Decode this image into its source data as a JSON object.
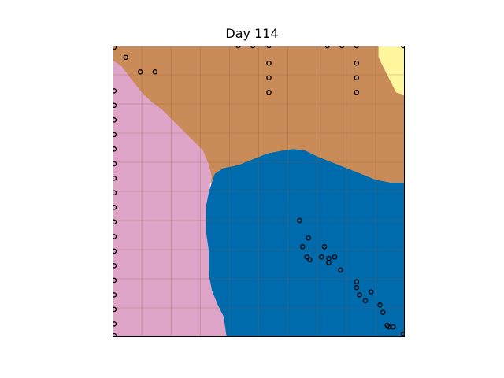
{
  "title": "Day 114",
  "colors": {
    "brown": "#c98b58",
    "pink": "#dea5c8",
    "blue": "#006bac",
    "yellow": "#fff59c",
    "grid": "#8a5a3a",
    "marker_edge": "#000000"
  },
  "grid": true,
  "legend": "none",
  "regions": [
    {
      "name": "brown",
      "color_key": "brown"
    },
    {
      "name": "pink",
      "color_key": "pink"
    },
    {
      "name": "blue",
      "color_key": "blue"
    },
    {
      "name": "yellow",
      "color_key": "yellow"
    }
  ],
  "markers": [
    [
      0.5,
      99.5
    ],
    [
      0.5,
      84.5
    ],
    [
      0.5,
      79.5
    ],
    [
      0.5,
      74.5
    ],
    [
      0.5,
      69.5
    ],
    [
      0.5,
      64.5
    ],
    [
      0.5,
      59.5
    ],
    [
      0.5,
      54.5
    ],
    [
      0.5,
      49.5
    ],
    [
      0.5,
      44.5
    ],
    [
      0.5,
      39.5
    ],
    [
      0.5,
      34.5
    ],
    [
      0.5,
      29.5
    ],
    [
      0.5,
      24.5
    ],
    [
      0.5,
      19.5
    ],
    [
      0.5,
      14.5
    ],
    [
      0.5,
      9.5
    ],
    [
      0.5,
      4.5
    ],
    [
      0.5,
      0.5
    ],
    [
      4.5,
      96
    ],
    [
      9.5,
      91
    ],
    [
      14.5,
      91
    ],
    [
      43,
      100
    ],
    [
      48,
      100
    ],
    [
      53.5,
      100
    ],
    [
      53.5,
      94
    ],
    [
      53.5,
      89
    ],
    [
      53.5,
      84
    ],
    [
      73.5,
      100
    ],
    [
      78.5,
      100
    ],
    [
      83.5,
      100
    ],
    [
      83.5,
      94
    ],
    [
      83.5,
      89
    ],
    [
      83.5,
      84
    ],
    [
      99.5,
      100
    ],
    [
      64,
      40
    ],
    [
      67,
      34
    ],
    [
      65,
      31
    ],
    [
      66.5,
      27.5
    ],
    [
      67.5,
      26.5
    ],
    [
      72.5,
      31
    ],
    [
      71.5,
      27.5
    ],
    [
      74,
      27
    ],
    [
      76,
      27.5
    ],
    [
      74,
      25.5
    ],
    [
      78,
      23
    ],
    [
      83.5,
      19
    ],
    [
      83.5,
      17
    ],
    [
      84.5,
      14.5
    ],
    [
      86.5,
      12.5
    ],
    [
      88.5,
      15.5
    ],
    [
      91.5,
      11
    ],
    [
      92.5,
      8.5
    ],
    [
      94,
      4
    ],
    [
      94.5,
      3.5
    ],
    [
      96,
      3.5
    ],
    [
      99.5,
      1
    ]
  ]
}
